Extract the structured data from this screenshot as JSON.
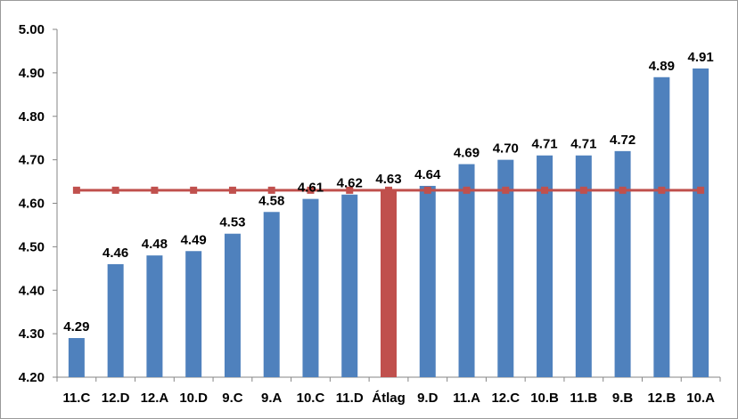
{
  "chart_data": {
    "type": "bar",
    "title": "",
    "xlabel": "",
    "ylabel": "",
    "ylim": [
      4.2,
      5.0
    ],
    "yticks": [
      "4.20",
      "4.30",
      "4.40",
      "4.50",
      "4.60",
      "4.70",
      "4.80",
      "4.90",
      "5.00"
    ],
    "grid": false,
    "categories": [
      "11.C",
      "12.D",
      "12.A",
      "10.D",
      "9.C",
      "9.A",
      "10.C",
      "11.D",
      "Átlag",
      "9.D",
      "11.A",
      "12.C",
      "10.B",
      "11.B",
      "9.B",
      "12.B",
      "10.A"
    ],
    "values": [
      4.29,
      4.46,
      4.48,
      4.49,
      4.53,
      4.58,
      4.61,
      4.62,
      4.63,
      4.64,
      4.69,
      4.7,
      4.71,
      4.71,
      4.72,
      4.89,
      4.91
    ],
    "value_labels": [
      "4.29",
      "4.46",
      "4.48",
      "4.49",
      "4.53",
      "4.58",
      "4.61",
      "4.62",
      "4.63",
      "4.64",
      "4.69",
      "4.70",
      "4.71",
      "4.71",
      "4.72",
      "4.89",
      "4.91"
    ],
    "highlight_category": "Átlag",
    "average_line": {
      "value": 4.63,
      "marker": "square"
    },
    "colors": {
      "bar": "#4f81bd",
      "highlight_bar": "#c0504d",
      "average_line": "#c0504d"
    }
  }
}
